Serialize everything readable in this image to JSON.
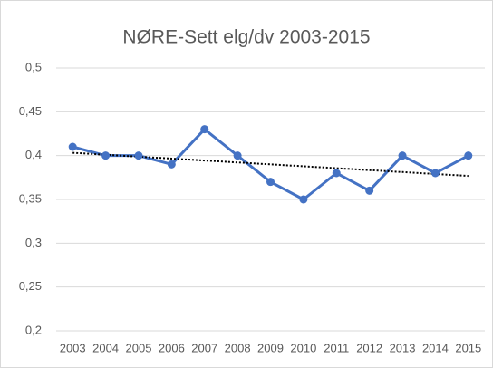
{
  "chart_data": {
    "type": "line",
    "title": "NØRE-Sett elg/dv 2003-2015",
    "categories": [
      "2003",
      "2004",
      "2005",
      "2006",
      "2007",
      "2008",
      "2009",
      "2010",
      "2011",
      "2012",
      "2013",
      "2014",
      "2015"
    ],
    "series": [
      {
        "name": "NØRE-Sett elg/dv",
        "color": "#4472c4",
        "values": [
          0.41,
          0.4,
          0.4,
          0.39,
          0.43,
          0.4,
          0.37,
          0.35,
          0.38,
          0.36,
          0.4,
          0.38,
          0.4
        ]
      }
    ],
    "ylim": [
      0.2,
      0.5
    ],
    "yticks": [
      {
        "value": 0.2,
        "label": "0,2"
      },
      {
        "value": 0.25,
        "label": "0,25"
      },
      {
        "value": 0.3,
        "label": "0,3"
      },
      {
        "value": 0.35,
        "label": "0,35"
      },
      {
        "value": 0.4,
        "label": "0,4"
      },
      {
        "value": 0.45,
        "label": "0,45"
      },
      {
        "value": 0.5,
        "label": "0,5"
      }
    ],
    "grid": true,
    "trendline": "linear",
    "trendline_color": "#000000"
  }
}
